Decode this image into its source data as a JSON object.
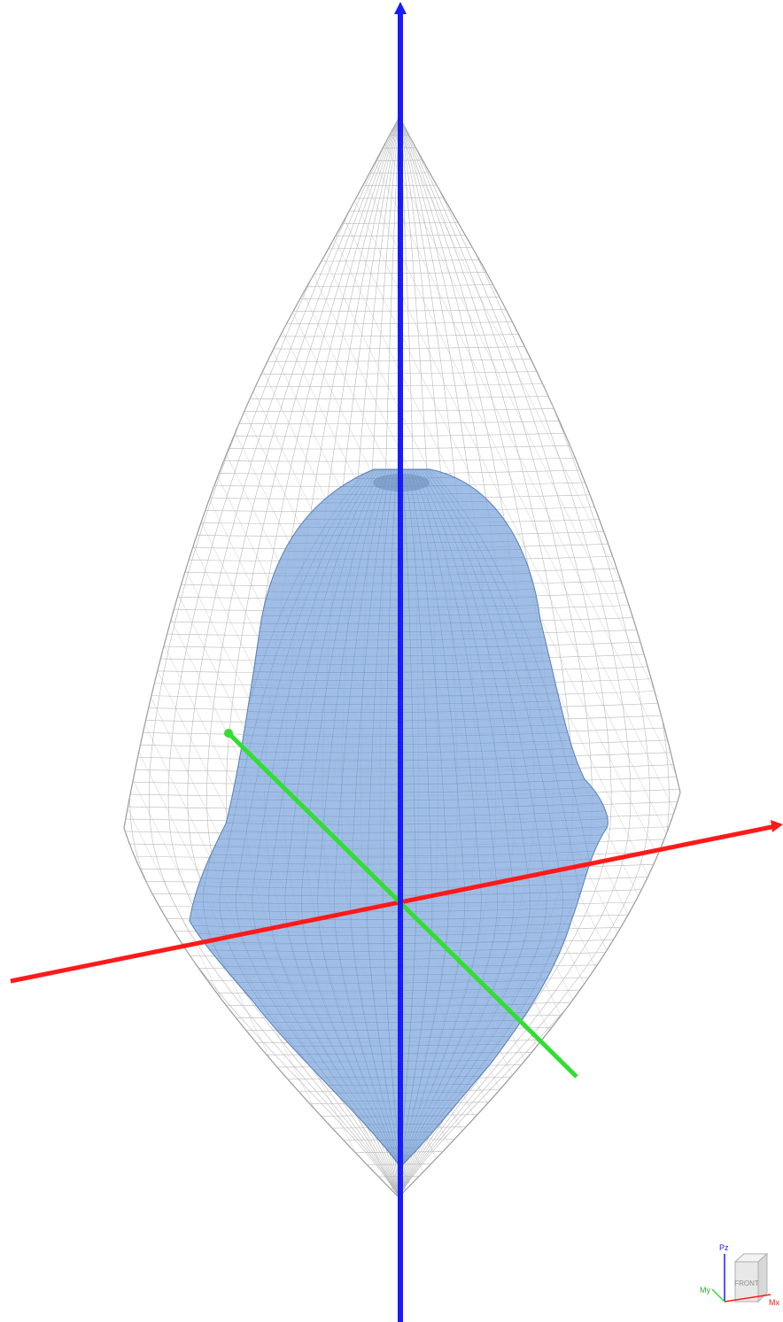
{
  "view_cube": {
    "face_label": "FRONT",
    "axis_z_label": "Pz",
    "axis_y_label": "My",
    "axis_x_label": "Mx"
  },
  "colors": {
    "background": "#ffffff",
    "axis_z": "#1a1aff",
    "axis_x": "#ff1a1a",
    "axis_y": "#33dd33",
    "inner_surface_fill": "#8fb3e0",
    "inner_surface_stroke": "#5a7fb5",
    "outer_mesh": "#b8b8b8"
  },
  "icons": {
    "view_cube": "view-cube-icon"
  }
}
